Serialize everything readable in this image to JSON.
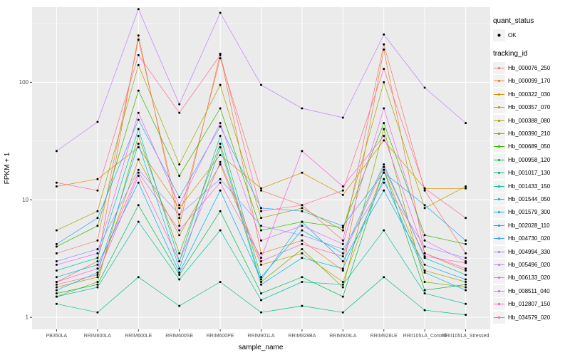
{
  "chart_data": {
    "type": "line",
    "title": "",
    "xlabel": "sample_name",
    "ylabel": "FPKM + 1",
    "y_scale": "log10",
    "y_ticks": [
      1,
      10,
      100
    ],
    "y_minor": [
      3.162,
      31.62,
      316.2
    ],
    "ylim": [
      0.79,
      436
    ],
    "grid": "on",
    "legend_position": "right",
    "panel_bg": "#EBEBEB",
    "grid_color": "#FFFFFF",
    "point_color": "#000000",
    "categories": [
      "PB350LA",
      "RRIM600LA",
      "RRIM600LE",
      "RRIM600SE",
      "RRIM600PE",
      "RRIM901LA",
      "RRIM928BA",
      "RRIM928LA",
      "RRIM928LE",
      "RRII105LA_Control",
      "RRII105LA_Stressed"
    ],
    "series": [
      {
        "name": "Hb_000076_250",
        "color": "#F8766D",
        "values": [
          3.5,
          4.5,
          230,
          7,
          160,
          12,
          9,
          4.5,
          210,
          12,
          3.5
        ]
      },
      {
        "name": "Hb_000099_170",
        "color": "#EA8331",
        "values": [
          2.0,
          3.0,
          250,
          6,
          175,
          3.5,
          4.5,
          2.5,
          190,
          3.5,
          2.5
        ]
      },
      {
        "name": "Hb_000322_030",
        "color": "#D89000",
        "values": [
          13,
          15,
          28,
          8.5,
          24,
          12.5,
          17,
          11,
          32,
          12.5,
          12.5
        ]
      },
      {
        "name": "Hb_000357_070",
        "color": "#C09B00",
        "values": [
          1.8,
          2.2,
          22,
          5,
          20,
          2.8,
          3.5,
          2.0,
          18,
          2.5,
          2.0
        ]
      },
      {
        "name": "Hb_000388_080",
        "color": "#A3A500",
        "values": [
          5.5,
          8,
          140,
          20,
          95,
          7,
          8.5,
          5.5,
          100,
          8.5,
          13
        ]
      },
      {
        "name": "Hb_000390_210",
        "color": "#7CAE00",
        "values": [
          1.5,
          2.0,
          35,
          3.5,
          30,
          2.0,
          3.8,
          1.8,
          40,
          2.0,
          1.8
        ]
      },
      {
        "name": "Hb_000689_050",
        "color": "#39B600",
        "values": [
          4.0,
          6.0,
          85,
          16,
          60,
          5.5,
          6.5,
          5.8,
          45,
          5.0,
          4.2
        ]
      },
      {
        "name": "Hb_000958_120",
        "color": "#00BB4E",
        "values": [
          1.6,
          1.9,
          9,
          2.3,
          8,
          1.6,
          2.2,
          1.5,
          18,
          1.7,
          1.9
        ]
      },
      {
        "name": "Hb_001017_130",
        "color": "#00BF7D",
        "values": [
          1.3,
          1.1,
          2.2,
          1.25,
          2.0,
          1.1,
          1.25,
          1.1,
          2.2,
          1.15,
          1.05
        ]
      },
      {
        "name": "Hb_001433_150",
        "color": "#00C1A3",
        "values": [
          1.5,
          1.8,
          6.5,
          2.1,
          5.5,
          1.4,
          2.0,
          1.9,
          5.5,
          1.6,
          1.3
        ]
      },
      {
        "name": "Hb_001544_050",
        "color": "#00BFC4",
        "values": [
          2.5,
          3.2,
          40,
          3.0,
          35,
          2.2,
          5.5,
          3.5,
          20,
          3.2,
          2.3
        ]
      },
      {
        "name": "Hb_001579_300",
        "color": "#00BAE0",
        "values": [
          1.7,
          2.4,
          30,
          2.6,
          28,
          1.9,
          3.2,
          2.6,
          15,
          2.4,
          1.7
        ]
      },
      {
        "name": "Hb_002028_110",
        "color": "#00B0F6",
        "values": [
          2.2,
          2.8,
          14,
          2.4,
          12,
          2.1,
          6.5,
          3.0,
          12,
          2.8,
          2.1
        ]
      },
      {
        "name": "Hb_004730_020",
        "color": "#35A2FF",
        "values": [
          4.2,
          7.0,
          48,
          10.5,
          42,
          8.5,
          8.0,
          6.0,
          17,
          9.0,
          4.5
        ]
      },
      {
        "name": "Hb_004994_330",
        "color": "#9590FF",
        "values": [
          3.0,
          3.8,
          18,
          7.5,
          15,
          6.0,
          5.0,
          3.8,
          14,
          4.0,
          3.2
        ]
      },
      {
        "name": "Hb_005496_020",
        "color": "#C77CFF",
        "values": [
          26,
          46,
          420,
          65,
          390,
          95,
          60,
          50,
          255,
          90,
          45
        ]
      },
      {
        "name": "Hb_006133_020",
        "color": "#E76BF3",
        "values": [
          2.8,
          3.5,
          55,
          9.0,
          45,
          4.5,
          6.0,
          4.2,
          60,
          4.5,
          3.0
        ]
      },
      {
        "name": "Hb_008511_040",
        "color": "#FA62DB",
        "values": [
          2.0,
          2.6,
          17,
          5.5,
          14,
          3.2,
          26,
          13,
          35,
          3.5,
          2.6
        ]
      },
      {
        "name": "Hb_012807_150",
        "color": "#FF62BC",
        "values": [
          1.9,
          2.3,
          16,
          3.0,
          21,
          3.0,
          4.2,
          3.3,
          19,
          3.3,
          2.9
        ]
      },
      {
        "name": "Hb_034579_020",
        "color": "#FF6A98",
        "values": [
          14,
          12,
          170,
          55,
          170,
          8.0,
          9.0,
          12,
          130,
          12.5,
          7.0
        ]
      }
    ]
  },
  "legend": {
    "quant_status": {
      "title": "quant_status",
      "items": [
        {
          "label": "OK"
        }
      ]
    },
    "tracking": {
      "title": "tracking_id"
    }
  }
}
